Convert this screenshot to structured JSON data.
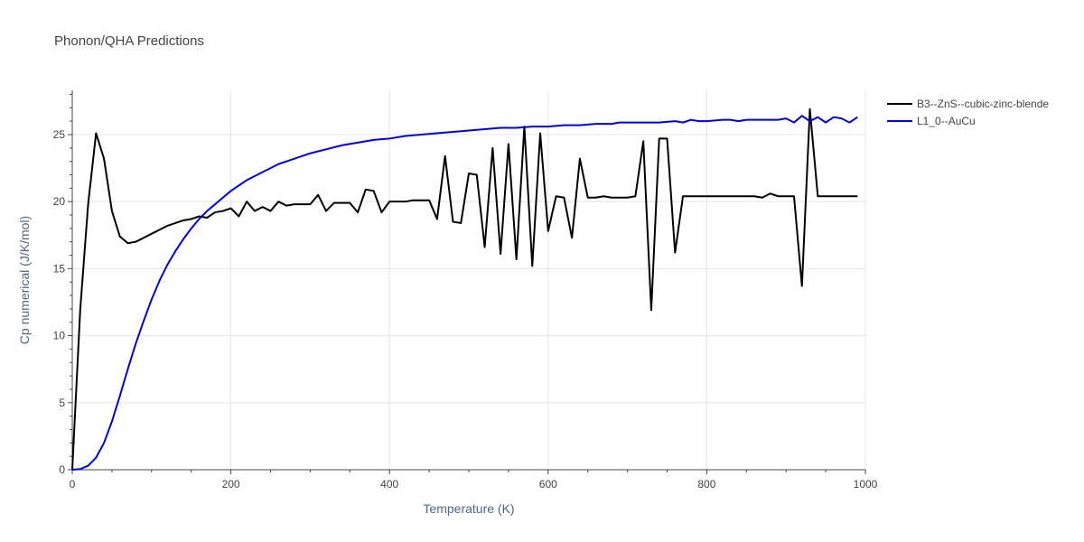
{
  "chart_data": {
    "type": "line",
    "title": "Phonon/QHA Predictions",
    "xlabel": "Temperature (K)",
    "ylabel": "Cp numerical (J/K/mol)",
    "xlim": [
      0,
      1000
    ],
    "ylim": [
      0,
      28.3
    ],
    "xticks": [
      0,
      200,
      400,
      600,
      800,
      1000
    ],
    "yticks": [
      0,
      5,
      10,
      15,
      20,
      25
    ],
    "grid": true,
    "legend_position": "top-right",
    "series": [
      {
        "name": "B3--ZnS--cubic-zinc-blende",
        "color": "#000000",
        "x": [
          0,
          10,
          20,
          30,
          40,
          50,
          60,
          70,
          80,
          90,
          100,
          110,
          120,
          130,
          140,
          150,
          160,
          170,
          180,
          190,
          200,
          210,
          220,
          230,
          240,
          250,
          260,
          270,
          280,
          290,
          300,
          310,
          320,
          330,
          340,
          350,
          360,
          370,
          380,
          390,
          400,
          410,
          420,
          430,
          440,
          450,
          460,
          470,
          480,
          490,
          500,
          510,
          520,
          530,
          540,
          550,
          560,
          570,
          580,
          590,
          600,
          610,
          620,
          630,
          640,
          650,
          660,
          670,
          680,
          690,
          700,
          710,
          720,
          730,
          740,
          750,
          760,
          770,
          780,
          790,
          800,
          810,
          820,
          830,
          840,
          850,
          860,
          870,
          880,
          890,
          900,
          910,
          920,
          930,
          940,
          950,
          960,
          970,
          980,
          990
        ],
        "y": [
          0,
          11.9,
          19.8,
          25.1,
          23.2,
          19.3,
          17.4,
          16.9,
          17.0,
          17.3,
          17.6,
          17.9,
          18.2,
          18.4,
          18.6,
          18.7,
          18.9,
          18.8,
          19.2,
          19.3,
          19.5,
          18.9,
          20.0,
          19.3,
          19.6,
          19.3,
          20.0,
          19.7,
          19.8,
          19.8,
          19.8,
          20.5,
          19.3,
          19.9,
          19.9,
          19.9,
          19.2,
          20.9,
          20.8,
          19.2,
          20.0,
          20.0,
          20.0,
          20.1,
          20.1,
          20.1,
          18.7,
          23.4,
          18.5,
          18.4,
          22.1,
          22.0,
          16.6,
          24.0,
          16.1,
          24.3,
          15.7,
          25.6,
          15.2,
          25.1,
          17.8,
          20.4,
          20.3,
          17.3,
          23.2,
          20.3,
          20.3,
          20.4,
          20.3,
          20.3,
          20.3,
          20.4,
          24.5,
          11.9,
          24.7,
          24.7,
          16.2,
          20.4,
          20.4,
          20.4,
          20.4,
          20.4,
          20.4,
          20.4,
          20.4,
          20.4,
          20.4,
          20.3,
          20.6,
          20.4,
          20.4,
          20.4,
          13.7,
          26.9,
          20.4,
          20.4,
          20.4,
          20.4,
          20.4,
          20.4
        ]
      },
      {
        "name": "L1_0--AuCu",
        "color": "#0000dd",
        "x": [
          0,
          10,
          20,
          30,
          40,
          50,
          60,
          70,
          80,
          90,
          100,
          110,
          120,
          130,
          140,
          150,
          160,
          170,
          180,
          190,
          200,
          210,
          220,
          230,
          240,
          250,
          260,
          270,
          280,
          290,
          300,
          320,
          340,
          360,
          380,
          400,
          420,
          440,
          460,
          480,
          500,
          520,
          540,
          560,
          580,
          600,
          620,
          640,
          660,
          670,
          680,
          690,
          700,
          720,
          740,
          760,
          770,
          780,
          790,
          800,
          820,
          830,
          840,
          850,
          860,
          870,
          880,
          890,
          900,
          910,
          920,
          930,
          940,
          950,
          960,
          970,
          980,
          990
        ],
        "y": [
          0,
          0.05,
          0.3,
          0.9,
          2.0,
          3.6,
          5.5,
          7.5,
          9.4,
          11.1,
          12.7,
          14.1,
          15.3,
          16.3,
          17.2,
          18.0,
          18.7,
          19.3,
          19.8,
          20.3,
          20.8,
          21.2,
          21.6,
          21.9,
          22.2,
          22.5,
          22.8,
          23.0,
          23.2,
          23.4,
          23.6,
          23.9,
          24.2,
          24.4,
          24.6,
          24.7,
          24.9,
          25.0,
          25.1,
          25.2,
          25.3,
          25.4,
          25.5,
          25.5,
          25.6,
          25.6,
          25.7,
          25.7,
          25.8,
          25.8,
          25.8,
          25.9,
          25.9,
          25.9,
          25.9,
          26.0,
          25.9,
          26.1,
          26.0,
          26.0,
          26.1,
          26.1,
          26.0,
          26.1,
          26.1,
          26.1,
          26.1,
          26.1,
          26.2,
          25.9,
          26.4,
          26.0,
          26.3,
          25.9,
          26.3,
          26.2,
          25.9,
          26.3
        ]
      }
    ]
  }
}
